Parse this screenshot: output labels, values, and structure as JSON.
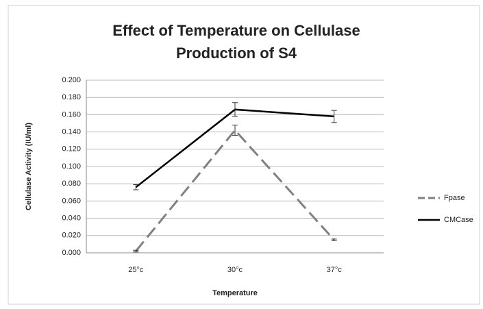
{
  "chart_data": {
    "type": "line",
    "title": [
      "Effect of Temperature on Cellulase",
      "Production of S4"
    ],
    "x_label": "Temperature",
    "y_label": "Cellulase Activity (IU/ml)",
    "categories": [
      "25°c",
      "30°c",
      "37°c"
    ],
    "series": [
      {
        "name": "Fpase",
        "color": "#808080",
        "dashed": true,
        "values": [
          0.002,
          0.142,
          0.015
        ],
        "errors": [
          0.001,
          0.006,
          0.001
        ]
      },
      {
        "name": "CMCase",
        "color": "#000000",
        "dashed": false,
        "values": [
          0.076,
          0.166,
          0.158
        ],
        "errors": [
          0.003,
          0.008,
          0.007
        ]
      }
    ],
    "ylim": [
      0,
      0.2
    ],
    "yticks": [
      {
        "value": 0,
        "label": "0.000"
      },
      {
        "value": 0.02,
        "label": "0.020"
      },
      {
        "value": 0.04,
        "label": "0.040"
      },
      {
        "value": 0.06,
        "label": "0.060"
      },
      {
        "value": 0.08,
        "label": "0.080"
      },
      {
        "value": 0.1,
        "label": "0.100"
      },
      {
        "value": 0.12,
        "label": "0.120"
      },
      {
        "value": 0.14,
        "label": "0.140"
      },
      {
        "value": 0.16,
        "label": "0.160"
      },
      {
        "value": 0.18,
        "label": "0.180"
      },
      {
        "value": 0.2,
        "label": "0.200"
      }
    ],
    "grid": true,
    "legend": "right"
  }
}
